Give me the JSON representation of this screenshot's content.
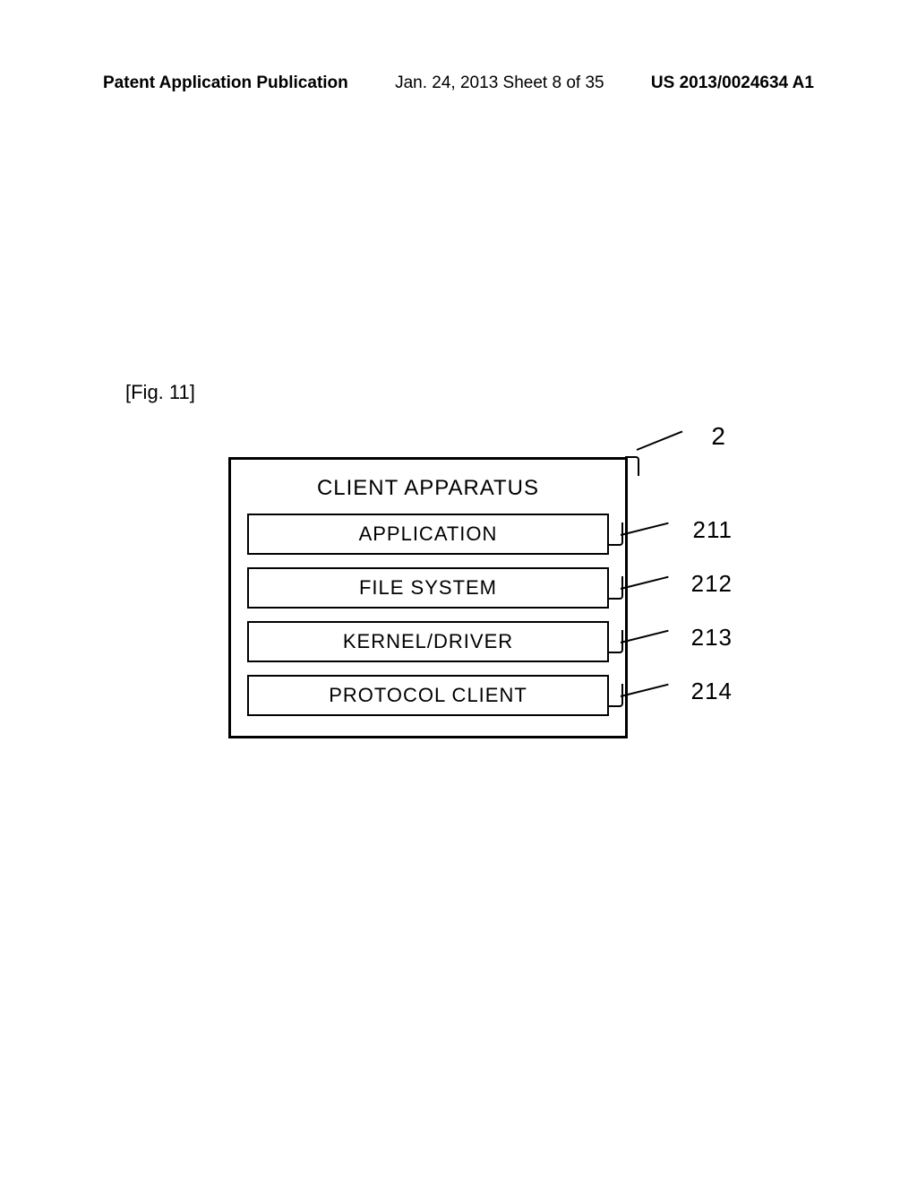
{
  "header": {
    "left": "Patent Application Publication",
    "mid": "Jan. 24, 2013  Sheet 8 of 35",
    "right": "US 2013/0024634 A1"
  },
  "figure": {
    "label": "[Fig. 11]",
    "outer_ref": "2",
    "outer_title": "CLIENT APPARATUS",
    "boxes": [
      {
        "label": "APPLICATION",
        "ref": "211"
      },
      {
        "label": "FILE SYSTEM",
        "ref": "212"
      },
      {
        "label": "KERNEL/DRIVER",
        "ref": "213"
      },
      {
        "label": "PROTOCOL CLIENT",
        "ref": "214"
      }
    ]
  },
  "colors": {
    "background": "#ffffff",
    "line": "#000000",
    "text": "#000000"
  }
}
